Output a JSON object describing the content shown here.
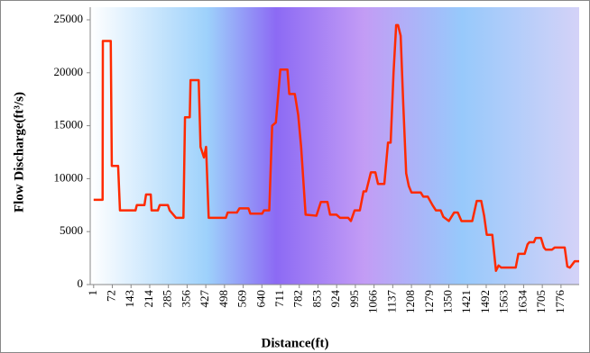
{
  "chart_data": {
    "type": "line",
    "xlabel": "Distance(ft)",
    "ylabel": "Flow Discharge(ft³/s)",
    "x": [
      1,
      35,
      36,
      66,
      70,
      94,
      101,
      160,
      165,
      194,
      200,
      218,
      221,
      245,
      252,
      283,
      290,
      314,
      342,
      348,
      366,
      369,
      400,
      407,
      420,
      428,
      438,
      503,
      510,
      545,
      555,
      589,
      596,
      641,
      648,
      668,
      679,
      693,
      710,
      737,
      744,
      765,
      778,
      789,
      806,
      847,
      864,
      889,
      899,
      923,
      937,
      968,
      978,
      992,
      1012,
      1026,
      1036,
      1054,
      1071,
      1081,
      1105,
      1119,
      1129,
      1140,
      1150,
      1157,
      1167,
      1177,
      1188,
      1198,
      1208,
      1243,
      1253,
      1270,
      1288,
      1301,
      1319,
      1329,
      1350,
      1370,
      1384,
      1398,
      1439,
      1456,
      1473,
      1484,
      1494,
      1515,
      1522,
      1529,
      1539,
      1549,
      1604,
      1614,
      1638,
      1649,
      1656,
      1673,
      1680,
      1700,
      1711,
      1718,
      1742,
      1752,
      1790,
      1800,
      1810,
      1828,
      1845
    ],
    "series": [
      {
        "color": "#ff2a00",
        "values": [
          8000,
          8000,
          23000,
          23000,
          11200,
          11200,
          7000,
          7000,
          7500,
          7500,
          8500,
          8500,
          7000,
          7000,
          7500,
          7500,
          7000,
          6300,
          6300,
          15800,
          15800,
          19300,
          19300,
          13000,
          12000,
          13000,
          6300,
          6300,
          6800,
          6800,
          7200,
          7200,
          6700,
          6700,
          7000,
          7000,
          15000,
          15300,
          20300,
          20300,
          18000,
          18000,
          16000,
          13000,
          6600,
          6500,
          7800,
          7800,
          6600,
          6600,
          6300,
          6300,
          6000,
          7000,
          7000,
          8800,
          8800,
          10600,
          10600,
          9500,
          9500,
          13400,
          13400,
          20000,
          24500,
          24500,
          23500,
          17000,
          10500,
          9300,
          8700,
          8700,
          8300,
          8300,
          7500,
          7000,
          7000,
          6400,
          6000,
          6800,
          6800,
          6000,
          6000,
          7900,
          7900,
          6500,
          4700,
          4700,
          3000,
          1300,
          1800,
          1600,
          1600,
          2900,
          2900,
          3800,
          4000,
          4000,
          4400,
          4400,
          3500,
          3300,
          3300,
          3500,
          3500,
          1700,
          1600,
          2200,
          2200
        ]
      }
    ],
    "xlim": [
      -12,
      1845
    ],
    "xticks": [
      1,
      72,
      143,
      214,
      285,
      356,
      427,
      498,
      569,
      640,
      711,
      782,
      853,
      924,
      995,
      1066,
      1137,
      1208,
      1279,
      1350,
      1421,
      1492,
      1563,
      1634,
      1705,
      1776
    ],
    "ylim": [
      0,
      25000
    ],
    "yticks": [
      0,
      5000,
      10000,
      15000,
      20000,
      25000
    ],
    "grid": false
  }
}
